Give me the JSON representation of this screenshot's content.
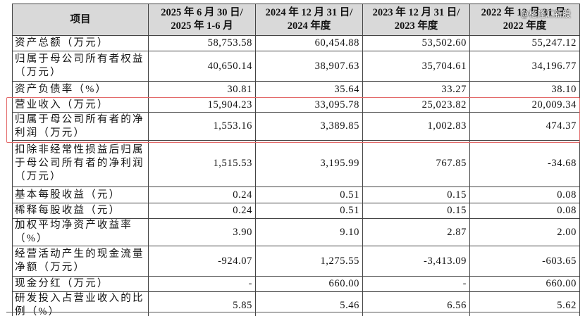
{
  "table": {
    "header": [
      "项目",
      "2025 年 6 月 30 日/\n2025 年 1-6 月",
      "2024 年 12 月 31 日/\n2024 年度",
      "2023 年 12 月 31 日/\n2023 年度",
      "2022 年 12 月 31 日/\n2022 年度"
    ],
    "rows": [
      [
        "资产总额（万元）",
        "58,753.58",
        "60,454.88",
        "53,502.60",
        "55,247.12"
      ],
      [
        "归属于母公司所有者权益（万元）",
        "40,650.14",
        "38,907.63",
        "35,704.61",
        "34,196.77"
      ],
      [
        "资产负债率（%）",
        "30.81",
        "35.64",
        "33.27",
        "38.10"
      ],
      [
        "营业收入（万元）",
        "15,904.23",
        "33,095.78",
        "25,023.82",
        "20,009.34"
      ],
      [
        "归属于母公司所有者的净利润（万元）",
        "1,553.16",
        "3,389.85",
        "1,002.83",
        "474.37"
      ],
      [
        "扣除非经常性损益后归属于母公司所有者的净利润（万元）",
        "1,515.53",
        "3,195.99",
        "767.85",
        "-34.68"
      ],
      [
        "基本每股收益（元）",
        "0.24",
        "0.51",
        "0.15",
        "0.08"
      ],
      [
        "稀释每股收益（元）",
        "0.24",
        "0.51",
        "0.15",
        "0.08"
      ],
      [
        "加权平均净资产收益率（%）",
        "3.90",
        "9.10",
        "2.87",
        "2.00"
      ],
      [
        "经营活动产生的现金流量净额（万元）",
        "-924.07",
        "1,275.55",
        "-3,413.09",
        "-603.65"
      ],
      [
        "现金分红（万元）",
        "-",
        "660.00",
        "-",
        "660.00"
      ],
      [
        "研发投入占营业收入的比例（%）",
        "5.85",
        "5.46",
        "6.56",
        "5.62"
      ]
    ]
  },
  "watermark": "@格隆汇新股"
}
